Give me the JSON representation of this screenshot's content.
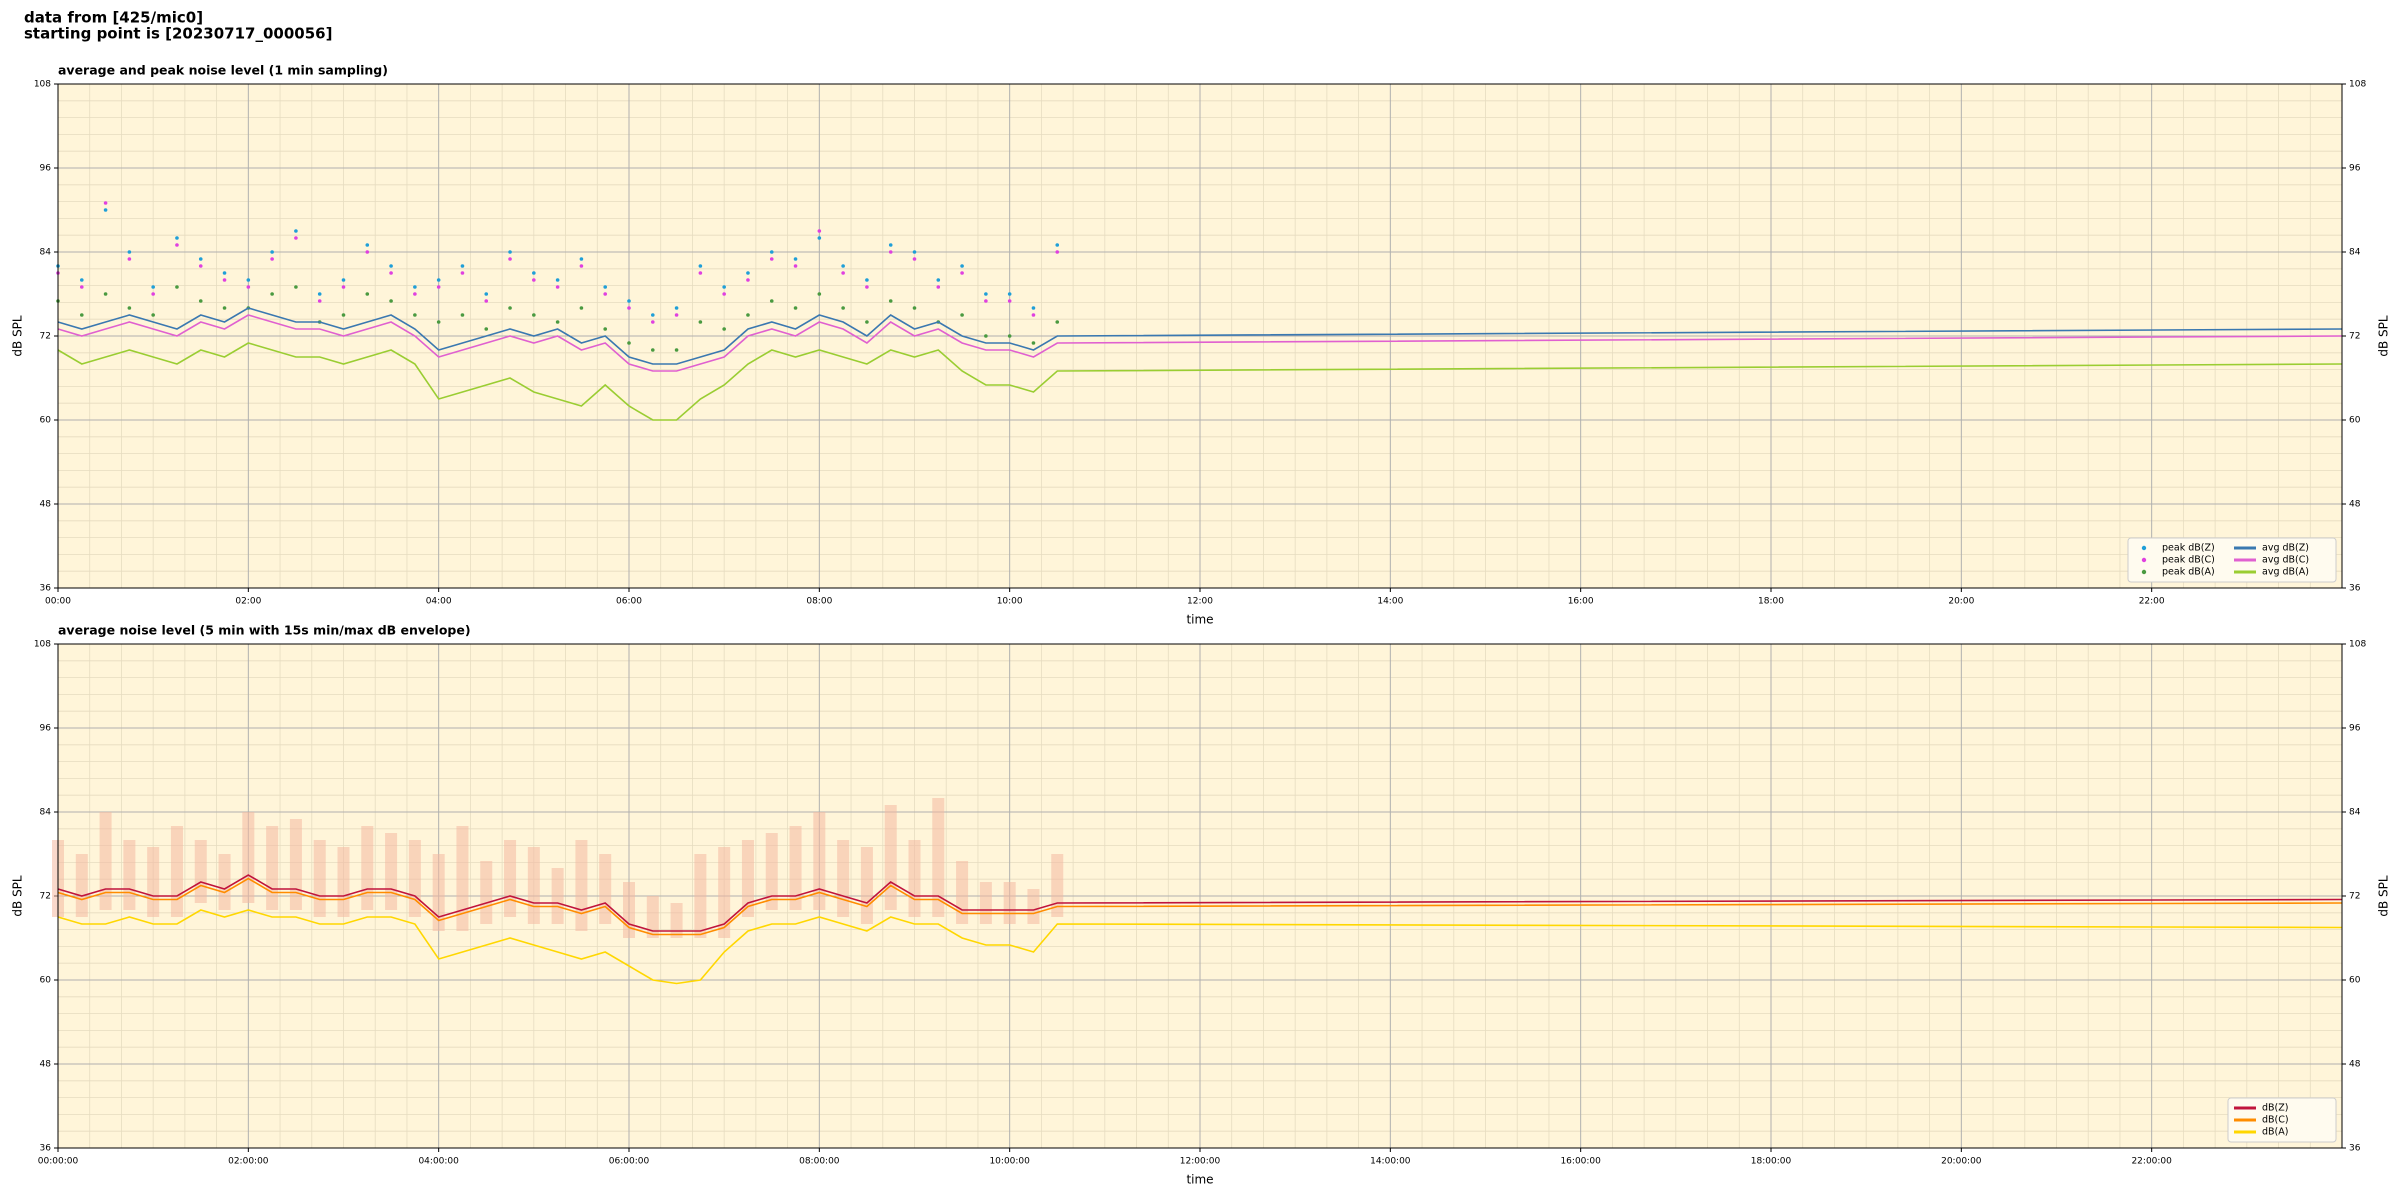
{
  "header": {
    "line1": "data from [425/mic0]",
    "line2": "starting point is [20230717_000056]"
  },
  "chart_data": [
    {
      "type": "line",
      "title": "average and peak noise level (1 min sampling)",
      "xlabel": "time",
      "ylabel": "dB SPL",
      "xlim": [
        0,
        24
      ],
      "ylim": [
        36,
        108
      ],
      "yticks": [
        36,
        48,
        60,
        72,
        84,
        96,
        108
      ],
      "xticks": [
        {
          "value": 0,
          "label": "00:00"
        },
        {
          "value": 2,
          "label": "02:00"
        },
        {
          "value": 4,
          "label": "04:00"
        },
        {
          "value": 6,
          "label": "06:00"
        },
        {
          "value": 8,
          "label": "08:00"
        },
        {
          "value": 10,
          "label": "10:00"
        },
        {
          "value": 12,
          "label": "12:00"
        },
        {
          "value": 14,
          "label": "14:00"
        },
        {
          "value": 16,
          "label": "16:00"
        },
        {
          "value": 18,
          "label": "18:00"
        },
        {
          "value": 20,
          "label": "20:00"
        },
        {
          "value": 22,
          "label": "22:00"
        }
      ],
      "grid": true,
      "minor_grid": true,
      "legend": "lower right",
      "legend_columns": 2,
      "background": "#fff5d9",
      "x": [
        0,
        0.25,
        0.5,
        0.75,
        1,
        1.25,
        1.5,
        1.75,
        2,
        2.25,
        2.5,
        2.75,
        3,
        3.25,
        3.5,
        3.75,
        4,
        4.25,
        4.5,
        4.75,
        5,
        5.25,
        5.5,
        5.75,
        6,
        6.25,
        6.5,
        6.75,
        7,
        7.25,
        7.5,
        7.75,
        8,
        8.25,
        8.5,
        8.75,
        9,
        9.25,
        9.5,
        9.75,
        10,
        10.25,
        10.5,
        24
      ],
      "series": [
        {
          "name": "peak dB(Z)",
          "style": "scatter",
          "color": "#1f9fd8",
          "values": [
            82,
            80,
            90,
            84,
            79,
            86,
            83,
            81,
            80,
            84,
            87,
            78,
            80,
            85,
            82,
            79,
            80,
            82,
            78,
            84,
            81,
            80,
            83,
            79,
            77,
            75,
            76,
            82,
            79,
            81,
            84,
            83,
            86,
            82,
            80,
            85,
            84,
            80,
            82,
            78,
            78,
            76,
            85,
            null
          ]
        },
        {
          "name": "peak dB(C)",
          "style": "scatter",
          "color": "#e040e0",
          "values": [
            81,
            79,
            91,
            83,
            78,
            85,
            82,
            80,
            79,
            83,
            86,
            77,
            79,
            84,
            81,
            78,
            79,
            81,
            77,
            83,
            80,
            79,
            82,
            78,
            76,
            74,
            75,
            81,
            78,
            80,
            83,
            82,
            87,
            81,
            79,
            84,
            83,
            79,
            81,
            77,
            77,
            75,
            84,
            null
          ]
        },
        {
          "name": "peak dB(A)",
          "style": "scatter",
          "color": "#4a9a40",
          "values": [
            77,
            75,
            78,
            76,
            75,
            79,
            77,
            76,
            76,
            78,
            79,
            74,
            75,
            78,
            77,
            75,
            74,
            75,
            73,
            76,
            75,
            74,
            76,
            73,
            71,
            70,
            70,
            74,
            73,
            75,
            77,
            76,
            78,
            76,
            74,
            77,
            76,
            74,
            75,
            72,
            72,
            71,
            74,
            null
          ]
        },
        {
          "name": "avg dB(Z)",
          "style": "line",
          "color": "#3a78b0",
          "values": [
            74,
            73,
            74,
            75,
            74,
            73,
            75,
            74,
            76,
            75,
            74,
            74,
            73,
            74,
            75,
            73,
            70,
            71,
            72,
            73,
            72,
            73,
            71,
            72,
            69,
            68,
            68,
            69,
            70,
            73,
            74,
            73,
            75,
            74,
            72,
            75,
            73,
            74,
            72,
            71,
            71,
            70,
            72,
            73
          ]
        },
        {
          "name": "avg dB(C)",
          "style": "line",
          "color": "#e060d0",
          "values": [
            73,
            72,
            73,
            74,
            73,
            72,
            74,
            73,
            75,
            74,
            73,
            73,
            72,
            73,
            74,
            72,
            69,
            70,
            71,
            72,
            71,
            72,
            70,
            71,
            68,
            67,
            67,
            68,
            69,
            72,
            73,
            72,
            74,
            73,
            71,
            74,
            72,
            73,
            71,
            70,
            70,
            69,
            71,
            72
          ]
        },
        {
          "name": "avg dB(A)",
          "style": "line",
          "color": "#9acd32",
          "values": [
            70,
            68,
            69,
            70,
            69,
            68,
            70,
            69,
            71,
            70,
            69,
            69,
            68,
            69,
            70,
            68,
            63,
            64,
            65,
            66,
            64,
            63,
            62,
            65,
            62,
            60,
            60,
            63,
            65,
            68,
            70,
            69,
            70,
            69,
            68,
            70,
            69,
            70,
            67,
            65,
            65,
            64,
            67,
            68
          ]
        }
      ]
    },
    {
      "type": "line",
      "title": "average noise level (5 min with 15s min/max dB envelope)",
      "xlabel": "time",
      "ylabel": "dB SPL",
      "xlim": [
        0,
        24
      ],
      "ylim": [
        36,
        108
      ],
      "yticks": [
        36,
        48,
        60,
        72,
        84,
        96,
        108
      ],
      "xticks": [
        {
          "value": 0,
          "label": "00:00:00"
        },
        {
          "value": 2,
          "label": "02:00:00"
        },
        {
          "value": 4,
          "label": "04:00:00"
        },
        {
          "value": 6,
          "label": "06:00:00"
        },
        {
          "value": 8,
          "label": "08:00:00"
        },
        {
          "value": 10,
          "label": "10:00:00"
        },
        {
          "value": 12,
          "label": "12:00:00"
        },
        {
          "value": 14,
          "label": "14:00:00"
        },
        {
          "value": 16,
          "label": "16:00:00"
        },
        {
          "value": 18,
          "label": "18:00:00"
        },
        {
          "value": 20,
          "label": "20:00:00"
        },
        {
          "value": 22,
          "label": "22:00:00"
        }
      ],
      "grid": true,
      "minor_grid": true,
      "legend": "lower right",
      "legend_columns": 1,
      "background": "#fff5d9",
      "x": [
        0,
        0.25,
        0.5,
        0.75,
        1,
        1.25,
        1.5,
        1.75,
        2,
        2.25,
        2.5,
        2.75,
        3,
        3.25,
        3.5,
        3.75,
        4,
        4.25,
        4.5,
        4.75,
        5,
        5.25,
        5.5,
        5.75,
        6,
        6.25,
        6.5,
        6.75,
        7,
        7.25,
        7.5,
        7.75,
        8,
        8.25,
        8.5,
        8.75,
        9,
        9.25,
        9.5,
        9.75,
        10,
        10.25,
        10.5,
        24
      ],
      "band": {
        "color": "#f4b8a0",
        "high": [
          80,
          78,
          84,
          80,
          79,
          82,
          80,
          78,
          84,
          82,
          83,
          80,
          79,
          82,
          81,
          80,
          78,
          82,
          77,
          80,
          79,
          76,
          80,
          78,
          74,
          72,
          71,
          78,
          79,
          80,
          81,
          82,
          84,
          80,
          79,
          85,
          80,
          86,
          77,
          74,
          74,
          73,
          78,
          null
        ],
        "low": [
          69,
          69,
          70,
          70,
          69,
          69,
          71,
          70,
          71,
          70,
          70,
          69,
          69,
          70,
          70,
          69,
          67,
          67,
          68,
          69,
          68,
          68,
          67,
          68,
          66,
          66,
          66,
          66,
          66,
          69,
          70,
          70,
          70,
          69,
          68,
          70,
          69,
          69,
          68,
          68,
          68,
          68,
          69,
          null
        ]
      },
      "series": [
        {
          "name": "dB(Z)",
          "style": "line",
          "color": "#c0143c",
          "values": [
            73,
            72,
            73,
            73,
            72,
            72,
            74,
            73,
            75,
            73,
            73,
            72,
            72,
            73,
            73,
            72,
            69,
            70,
            71,
            72,
            71,
            71,
            70,
            71,
            68,
            67,
            67,
            67,
            68,
            71,
            72,
            72,
            73,
            72,
            71,
            74,
            72,
            72,
            70,
            70,
            70,
            70,
            71,
            71.5
          ]
        },
        {
          "name": "dB(C)",
          "style": "line",
          "color": "#ff8c00",
          "values": [
            72.5,
            71.5,
            72.5,
            72.5,
            71.5,
            71.5,
            73.5,
            72.5,
            74.5,
            72.5,
            72.5,
            71.5,
            71.5,
            72.5,
            72.5,
            71.5,
            68.5,
            69.5,
            70.5,
            71.5,
            70.5,
            70.5,
            69.5,
            70.5,
            67.5,
            66.5,
            66.5,
            66.5,
            67.5,
            70.5,
            71.5,
            71.5,
            72.5,
            71.5,
            70.5,
            73.5,
            71.5,
            71.5,
            69.5,
            69.5,
            69.5,
            69.5,
            70.5,
            71
          ]
        },
        {
          "name": "dB(A)",
          "style": "line",
          "color": "#ffd700",
          "values": [
            69,
            68,
            68,
            69,
            68,
            68,
            70,
            69,
            70,
            69,
            69,
            68,
            68,
            69,
            69,
            68,
            63,
            64,
            65,
            66,
            65,
            64,
            63,
            64,
            62,
            60,
            59.5,
            60,
            64,
            67,
            68,
            68,
            69,
            68,
            67,
            69,
            68,
            68,
            66,
            65,
            65,
            64,
            68,
            67.5
          ]
        }
      ]
    }
  ]
}
